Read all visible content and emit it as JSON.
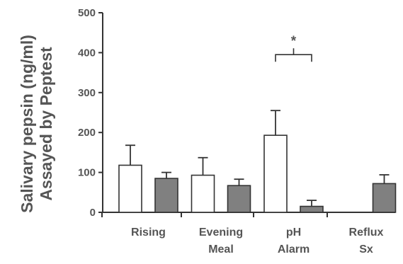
{
  "chart_data": {
    "type": "bar",
    "ylabel_lines": [
      "Salivary pepsin (ng/ml)",
      "Assayed by Peptest"
    ],
    "ylim": [
      0,
      500
    ],
    "yticks": [
      0,
      100,
      200,
      300,
      400,
      500
    ],
    "categories": [
      {
        "lines": [
          "Rising"
        ]
      },
      {
        "lines": [
          "Evening",
          "Meal"
        ]
      },
      {
        "lines": [
          "pH",
          "Alarm"
        ]
      },
      {
        "lines": [
          "Reflux",
          "Sx"
        ]
      }
    ],
    "series": [
      {
        "fill": "#ffffff",
        "values": [
          118,
          93,
          193,
          null
        ],
        "errors": [
          50,
          44,
          62,
          null
        ]
      },
      {
        "fill": "#808080",
        "values": [
          85,
          67,
          15,
          72
        ],
        "errors": [
          15,
          16,
          15,
          22
        ]
      }
    ],
    "significance": {
      "label": "*",
      "from_category": 2,
      "to_category": 2,
      "y": 395
    },
    "colors": {
      "axis": "#333333",
      "text": "#555555"
    }
  }
}
